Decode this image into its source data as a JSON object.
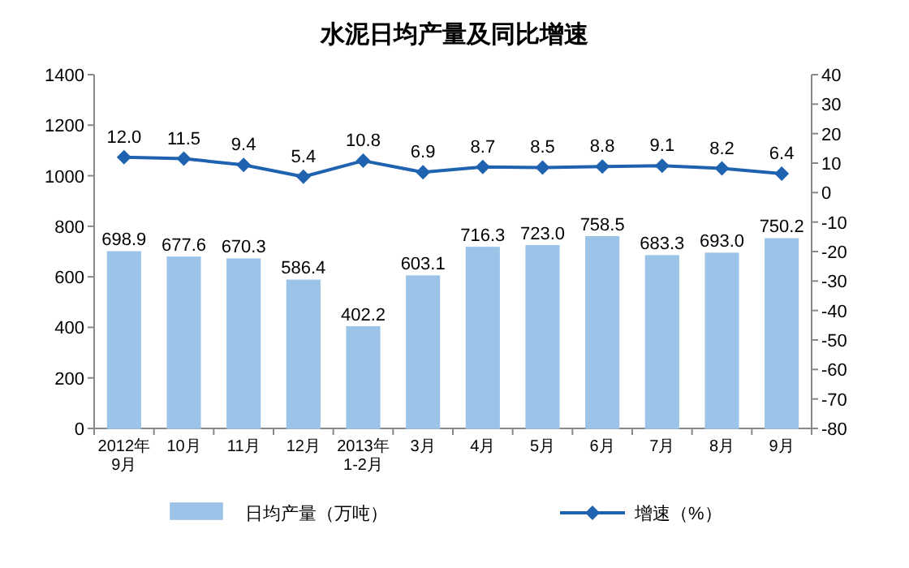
{
  "chart_data": {
    "type": "bar",
    "title": "水泥日均产量及同比增速",
    "categories": [
      "2012年\n9月",
      "10月",
      "11月",
      "12月",
      "2013年\n1-2月",
      "3月",
      "4月",
      "5月",
      "6月",
      "7月",
      "8月",
      "9月"
    ],
    "series": [
      {
        "name": "日均产量（万吨）",
        "color": "#9cc3e8",
        "values": [
          698.9,
          677.6,
          670.3,
          586.4,
          402.2,
          603.1,
          716.3,
          723.0,
          758.5,
          683.3,
          693.0,
          750.2
        ],
        "value_labels": [
          "698.9",
          "677.6",
          "670.3",
          "586.4",
          "402.2",
          "603.1",
          "716.3",
          "723.0",
          "758.5",
          "683.3",
          "693.0",
          "750.2"
        ]
      },
      {
        "name": "增速（%）",
        "type": "line",
        "axis": "y2",
        "color": "#1f62b0",
        "marker": "diamond",
        "values": [
          12.0,
          11.5,
          9.4,
          5.4,
          10.8,
          6.9,
          8.7,
          8.5,
          8.8,
          9.1,
          8.2,
          6.4
        ],
        "value_labels": [
          "12.0",
          "11.5",
          "9.4",
          "5.4",
          "10.8",
          "6.9",
          "8.7",
          "8.5",
          "8.8",
          "9.1",
          "8.2",
          "6.4"
        ]
      }
    ],
    "ylim": [
      0,
      1400
    ],
    "yticks": [
      0,
      200,
      400,
      600,
      800,
      1000,
      1200,
      1400
    ],
    "y2lim": [
      -80,
      40
    ],
    "y2ticks": [
      -80,
      -70,
      -60,
      -50,
      -40,
      -30,
      -20,
      -10,
      0,
      10,
      20,
      30,
      40
    ],
    "legend": "bottom"
  }
}
